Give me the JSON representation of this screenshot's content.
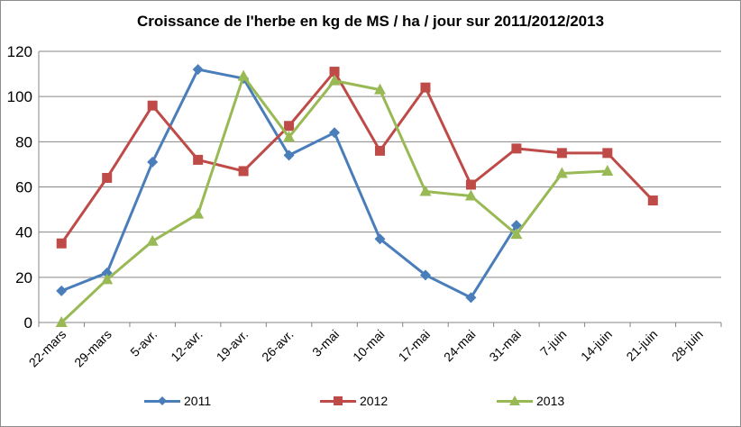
{
  "chart_data": {
    "type": "line",
    "title": "Croissance de l'herbe en kg de MS / ha / jour sur 2011/2012/2013",
    "xlabel": "",
    "ylabel": "",
    "categories": [
      "22-mars",
      "29-mars",
      "5-avr.",
      "12-avr.",
      "19-avr.",
      "26-avr.",
      "3-mai",
      "10-mai",
      "17-mai",
      "24-mai",
      "31-mai",
      "7-juin",
      "14-juin",
      "21-juin",
      "28-juin"
    ],
    "ylim": [
      0,
      120
    ],
    "yticks": [
      "0",
      "20",
      "40",
      "60",
      "80",
      "100",
      "120"
    ],
    "grid": true,
    "legend_position": "bottom",
    "series": [
      {
        "name": "2011",
        "color": "#4a7ebb",
        "marker": "diamond",
        "values": [
          14,
          22,
          71,
          112,
          108,
          74,
          84,
          37,
          21,
          11,
          43,
          null,
          null,
          null,
          null
        ]
      },
      {
        "name": "2012",
        "color": "#be4b48",
        "marker": "square",
        "values": [
          35,
          64,
          96,
          72,
          67,
          87,
          111,
          76,
          104,
          61,
          77,
          75,
          75,
          54,
          null
        ]
      },
      {
        "name": "2013",
        "color": "#98b954",
        "marker": "triangle",
        "values": [
          0,
          19,
          36,
          48,
          109,
          82,
          107,
          103,
          58,
          56,
          39,
          66,
          67,
          null,
          null
        ]
      }
    ]
  }
}
